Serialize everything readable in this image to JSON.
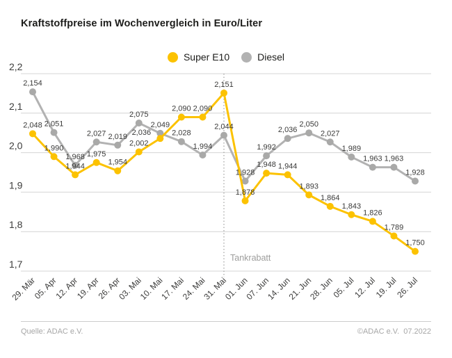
{
  "header": {
    "title": "Kraftstoffpreise im Wochenvergleich in Euro/Liter"
  },
  "legend": [
    {
      "label": "Super E10",
      "color": "#fcc200"
    },
    {
      "label": "Diesel",
      "color": "#b2b2b2"
    }
  ],
  "chart_data": {
    "type": "line",
    "title": "Kraftstoffpreise im Wochenvergleich in Euro/Liter",
    "categories": [
      "29. Mär",
      "05. Apr",
      "12. Apr",
      "19. Apr",
      "26. Apr",
      "03. Mai",
      "10. Mai",
      "17. Mai",
      "24. Mai",
      "31. Mai",
      "01. Jun",
      "07. Jun",
      "14. Jun",
      "21. Jun",
      "28. Jun",
      "05. Jul",
      "12. Jul",
      "19. Jul",
      "26. Jul"
    ],
    "series": [
      {
        "name": "Super E10",
        "color": "#fcc200",
        "point_color": "#fcc200",
        "values": [
          2.048,
          1.99,
          1.944,
          1.975,
          1.954,
          2.002,
          2.036,
          2.09,
          2.09,
          2.151,
          1.878,
          1.948,
          1.944,
          1.893,
          1.864,
          1.843,
          1.826,
          1.789,
          1.75
        ]
      },
      {
        "name": "Diesel",
        "color": "#b2b2b2",
        "point_color": "#a9a9a8",
        "values": [
          2.154,
          2.051,
          1.968,
          2.027,
          2.019,
          2.075,
          2.049,
          2.028,
          1.994,
          2.044,
          1.928,
          1.992,
          2.036,
          2.05,
          2.027,
          1.989,
          1.963,
          1.963,
          1.928
        ]
      }
    ],
    "ylim": [
      1.7,
      2.2
    ],
    "y_ticks": [
      2.2,
      2.1,
      2.0,
      1.9,
      1.8,
      1.7
    ],
    "grid": true,
    "legend_position": "top-center",
    "annotation": {
      "label": "Tankrabatt",
      "category": "31. Mai"
    },
    "decimal_separator": ",",
    "colors": {
      "grid": "#d4d4d4",
      "axis_text": "#3c3c3b",
      "data_label": "#3a3a39",
      "annotation": "#9d9d9c"
    }
  },
  "footer": {
    "source": "Quelle: ADAC e.V.",
    "copyright": "©ADAC e.V.  07.2022"
  }
}
